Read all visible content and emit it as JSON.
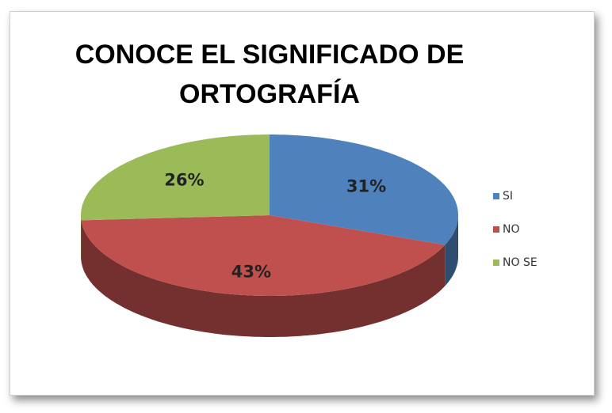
{
  "chart_data": {
    "type": "pie",
    "title": "CONOCE EL SIGNIFICADO DE ORTOGRAFÍA",
    "categories": [
      "SI",
      "NO",
      "NO SE"
    ],
    "values": [
      31,
      43,
      26
    ],
    "value_labels": [
      "31%",
      "43%",
      "26%"
    ],
    "colors": [
      "#4f81bd",
      "#c0504d",
      "#9bbb59"
    ],
    "legend": "right"
  }
}
